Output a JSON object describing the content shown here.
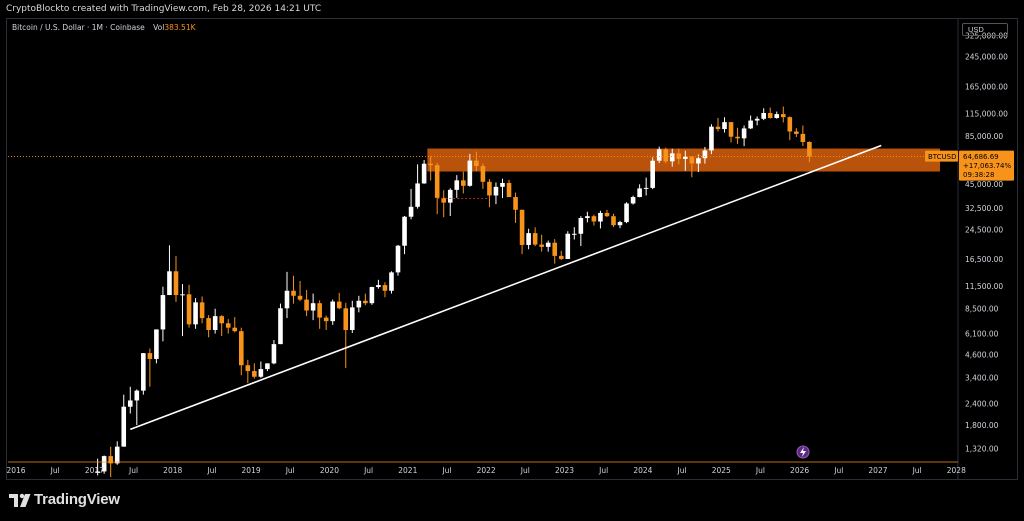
{
  "header": {
    "text": "CryptoBlockto created with TradingView.com, Feb 28, 2026 14:21 UTC"
  },
  "legend": {
    "symbol": "Bitcoin / U.S. Dollar · 1M · Coinbase",
    "vol_label": "Vol",
    "vol_value": "383.51K"
  },
  "currency": "USD",
  "price_tag": {
    "ticker": "BTCUSD",
    "price": "64,686.69",
    "change": "+17,063.74%",
    "countdown": "09:38:28"
  },
  "brand": "TradingView",
  "colors": {
    "up": "#ffffff",
    "down": "#f7931a",
    "zone": "#d9620e",
    "trendline": "#ffffff",
    "background": "#000000"
  },
  "chart_data": {
    "type": "candlestick",
    "scale": "log",
    "y_ticks": [
      "325,000.00",
      "245,000.00",
      "165,000.00",
      "115,000.00",
      "85,000.00",
      "45,000.00",
      "32,500.00",
      "24,500.00",
      "16,500.00",
      "11,500.00",
      "8,500.00",
      "6,100.00",
      "4,600.00",
      "3,400.00",
      "2,400.00",
      "1,800.00",
      "1,320.00"
    ],
    "x_ticks": [
      "2016",
      "Jul",
      "2017",
      "Jul",
      "2018",
      "Jul",
      "2019",
      "Jul",
      "2020",
      "Jul",
      "2021",
      "Jul",
      "2022",
      "Jul",
      "2023",
      "Jul",
      "2024",
      "Jul",
      "2025",
      "Jul",
      "2026",
      "Jul",
      "2027",
      "Jul",
      "2028"
    ],
    "annotations": {
      "resistance_zone": {
        "low": 53000,
        "high": 72000,
        "from": "2021-04",
        "to": "2027-10"
      },
      "trendline": {
        "from": {
          "date": "2017-06",
          "price": 1700
        },
        "to": {
          "date": "2027-01",
          "price": 75000
        }
      }
    },
    "candles": [
      {
        "d": "2017-01",
        "o": 950,
        "h": 1150,
        "l": 920,
        "c": 970
      },
      {
        "d": "2017-02",
        "o": 970,
        "h": 1200,
        "l": 940,
        "c": 1190
      },
      {
        "d": "2017-03",
        "o": 1190,
        "h": 1350,
        "l": 900,
        "c": 1080
      },
      {
        "d": "2017-04",
        "o": 1080,
        "h": 1450,
        "l": 1060,
        "c": 1350
      },
      {
        "d": "2017-05",
        "o": 1350,
        "h": 2700,
        "l": 1350,
        "c": 2300
      },
      {
        "d": "2017-06",
        "o": 2300,
        "h": 3000,
        "l": 2100,
        "c": 2500
      },
      {
        "d": "2017-07",
        "o": 2500,
        "h": 2900,
        "l": 1800,
        "c": 2850
      },
      {
        "d": "2017-08",
        "o": 2850,
        "h": 4700,
        "l": 2700,
        "c": 4700
      },
      {
        "d": "2017-09",
        "o": 4700,
        "h": 5000,
        "l": 3000,
        "c": 4350
      },
      {
        "d": "2017-10",
        "o": 4350,
        "h": 6400,
        "l": 4100,
        "c": 6450
      },
      {
        "d": "2017-11",
        "o": 6450,
        "h": 11400,
        "l": 5500,
        "c": 10200
      },
      {
        "d": "2017-12",
        "o": 10200,
        "h": 19800,
        "l": 10400,
        "c": 14000
      },
      {
        "d": "2018-01",
        "o": 14000,
        "h": 17200,
        "l": 9300,
        "c": 10200
      },
      {
        "d": "2018-02",
        "o": 10200,
        "h": 11800,
        "l": 5900,
        "c": 10300
      },
      {
        "d": "2018-03",
        "o": 10300,
        "h": 11700,
        "l": 6600,
        "c": 6900
      },
      {
        "d": "2018-04",
        "o": 6900,
        "h": 9800,
        "l": 6500,
        "c": 9250
      },
      {
        "d": "2018-05",
        "o": 9250,
        "h": 10000,
        "l": 7000,
        "c": 7500
      },
      {
        "d": "2018-06",
        "o": 7500,
        "h": 7800,
        "l": 5800,
        "c": 6400
      },
      {
        "d": "2018-07",
        "o": 6400,
        "h": 8500,
        "l": 6100,
        "c": 7700
      },
      {
        "d": "2018-08",
        "o": 7700,
        "h": 7800,
        "l": 5900,
        "c": 7000
      },
      {
        "d": "2018-09",
        "o": 7000,
        "h": 7400,
        "l": 6100,
        "c": 6600
      },
      {
        "d": "2018-10",
        "o": 6600,
        "h": 7600,
        "l": 6200,
        "c": 6300
      },
      {
        "d": "2018-11",
        "o": 6300,
        "h": 6600,
        "l": 3500,
        "c": 4000
      },
      {
        "d": "2018-12",
        "o": 4000,
        "h": 4300,
        "l": 3150,
        "c": 3700
      },
      {
        "d": "2019-01",
        "o": 3700,
        "h": 4100,
        "l": 3350,
        "c": 3430
      },
      {
        "d": "2019-02",
        "o": 3430,
        "h": 4200,
        "l": 3380,
        "c": 3800
      },
      {
        "d": "2019-03",
        "o": 3800,
        "h": 4100,
        "l": 3700,
        "c": 4100
      },
      {
        "d": "2019-04",
        "o": 4100,
        "h": 5600,
        "l": 4050,
        "c": 5300
      },
      {
        "d": "2019-05",
        "o": 5300,
        "h": 9100,
        "l": 5300,
        "c": 8550
      },
      {
        "d": "2019-06",
        "o": 8550,
        "h": 13900,
        "l": 7500,
        "c": 10800
      },
      {
        "d": "2019-07",
        "o": 10800,
        "h": 13200,
        "l": 9100,
        "c": 10100
      },
      {
        "d": "2019-08",
        "o": 10100,
        "h": 12300,
        "l": 9400,
        "c": 9600
      },
      {
        "d": "2019-09",
        "o": 9600,
        "h": 10900,
        "l": 7700,
        "c": 8300
      },
      {
        "d": "2019-10",
        "o": 8300,
        "h": 10400,
        "l": 7300,
        "c": 9150
      },
      {
        "d": "2019-11",
        "o": 9150,
        "h": 9500,
        "l": 6500,
        "c": 7550
      },
      {
        "d": "2019-12",
        "o": 7550,
        "h": 7750,
        "l": 6400,
        "c": 7200
      },
      {
        "d": "2020-01",
        "o": 7200,
        "h": 9600,
        "l": 6850,
        "c": 9350
      },
      {
        "d": "2020-02",
        "o": 9350,
        "h": 10500,
        "l": 8450,
        "c": 8550
      },
      {
        "d": "2020-03",
        "o": 8550,
        "h": 9200,
        "l": 3850,
        "c": 6400
      },
      {
        "d": "2020-04",
        "o": 6400,
        "h": 9450,
        "l": 6150,
        "c": 8650
      },
      {
        "d": "2020-05",
        "o": 8650,
        "h": 10100,
        "l": 8100,
        "c": 9450
      },
      {
        "d": "2020-06",
        "o": 9450,
        "h": 10400,
        "l": 8900,
        "c": 9150
      },
      {
        "d": "2020-07",
        "o": 9150,
        "h": 11400,
        "l": 8950,
        "c": 11350
      },
      {
        "d": "2020-08",
        "o": 11350,
        "h": 12500,
        "l": 11100,
        "c": 11650
      },
      {
        "d": "2020-09",
        "o": 11650,
        "h": 12100,
        "l": 9900,
        "c": 10800
      },
      {
        "d": "2020-10",
        "o": 10800,
        "h": 14000,
        "l": 10400,
        "c": 13800
      },
      {
        "d": "2020-11",
        "o": 13800,
        "h": 19900,
        "l": 13200,
        "c": 19700
      },
      {
        "d": "2020-12",
        "o": 19700,
        "h": 29300,
        "l": 17600,
        "c": 29000
      },
      {
        "d": "2021-01",
        "o": 29000,
        "h": 42000,
        "l": 28000,
        "c": 33100
      },
      {
        "d": "2021-02",
        "o": 33100,
        "h": 58300,
        "l": 32300,
        "c": 45200
      },
      {
        "d": "2021-03",
        "o": 45200,
        "h": 61800,
        "l": 45000,
        "c": 58800
      },
      {
        "d": "2021-04",
        "o": 58800,
        "h": 64900,
        "l": 47000,
        "c": 57700
      },
      {
        "d": "2021-05",
        "o": 57700,
        "h": 59500,
        "l": 30000,
        "c": 37300
      },
      {
        "d": "2021-06",
        "o": 37300,
        "h": 41300,
        "l": 28800,
        "c": 35000
      },
      {
        "d": "2021-07",
        "o": 35000,
        "h": 42400,
        "l": 29300,
        "c": 41500
      },
      {
        "d": "2021-08",
        "o": 41500,
        "h": 50500,
        "l": 37300,
        "c": 47100
      },
      {
        "d": "2021-09",
        "o": 47100,
        "h": 52900,
        "l": 39600,
        "c": 43800
      },
      {
        "d": "2021-10",
        "o": 43800,
        "h": 67000,
        "l": 43300,
        "c": 61300
      },
      {
        "d": "2021-11",
        "o": 61300,
        "h": 69000,
        "l": 53300,
        "c": 57000
      },
      {
        "d": "2021-12",
        "o": 57000,
        "h": 59100,
        "l": 42000,
        "c": 46200
      },
      {
        "d": "2022-01",
        "o": 46200,
        "h": 47900,
        "l": 32900,
        "c": 38500
      },
      {
        "d": "2022-02",
        "o": 38500,
        "h": 45800,
        "l": 34300,
        "c": 43200
      },
      {
        "d": "2022-03",
        "o": 43200,
        "h": 48200,
        "l": 37200,
        "c": 45500
      },
      {
        "d": "2022-04",
        "o": 45500,
        "h": 47400,
        "l": 37700,
        "c": 37700
      },
      {
        "d": "2022-05",
        "o": 37700,
        "h": 40000,
        "l": 26700,
        "c": 31800
      },
      {
        "d": "2022-06",
        "o": 31800,
        "h": 31900,
        "l": 17600,
        "c": 19900
      },
      {
        "d": "2022-07",
        "o": 19900,
        "h": 24700,
        "l": 18800,
        "c": 23300
      },
      {
        "d": "2022-08",
        "o": 23300,
        "h": 25200,
        "l": 19600,
        "c": 20000
      },
      {
        "d": "2022-09",
        "o": 20000,
        "h": 22800,
        "l": 18200,
        "c": 19400
      },
      {
        "d": "2022-10",
        "o": 19400,
        "h": 21100,
        "l": 18200,
        "c": 20500
      },
      {
        "d": "2022-11",
        "o": 20500,
        "h": 21500,
        "l": 15500,
        "c": 17200
      },
      {
        "d": "2022-12",
        "o": 17200,
        "h": 18400,
        "l": 16300,
        "c": 16500
      },
      {
        "d": "2023-01",
        "o": 16500,
        "h": 23900,
        "l": 16500,
        "c": 23100
      },
      {
        "d": "2023-02",
        "o": 23100,
        "h": 25200,
        "l": 21400,
        "c": 23100
      },
      {
        "d": "2023-03",
        "o": 23100,
        "h": 29200,
        "l": 19600,
        "c": 28500
      },
      {
        "d": "2023-04",
        "o": 28500,
        "h": 31000,
        "l": 26900,
        "c": 29200
      },
      {
        "d": "2023-05",
        "o": 29200,
        "h": 29800,
        "l": 25800,
        "c": 27200
      },
      {
        "d": "2023-06",
        "o": 27200,
        "h": 31400,
        "l": 24800,
        "c": 30500
      },
      {
        "d": "2023-07",
        "o": 30500,
        "h": 31800,
        "l": 28900,
        "c": 29200
      },
      {
        "d": "2023-08",
        "o": 29200,
        "h": 30200,
        "l": 25300,
        "c": 25900
      },
      {
        "d": "2023-09",
        "o": 25900,
        "h": 27500,
        "l": 24900,
        "c": 27000
      },
      {
        "d": "2023-10",
        "o": 27000,
        "h": 35200,
        "l": 26600,
        "c": 34600
      },
      {
        "d": "2023-11",
        "o": 34600,
        "h": 38400,
        "l": 34100,
        "c": 37700
      },
      {
        "d": "2023-12",
        "o": 37700,
        "h": 44700,
        "l": 37600,
        "c": 42300
      },
      {
        "d": "2024-01",
        "o": 42300,
        "h": 48900,
        "l": 38500,
        "c": 42600
      },
      {
        "d": "2024-02",
        "o": 42600,
        "h": 64000,
        "l": 41900,
        "c": 61200
      },
      {
        "d": "2024-03",
        "o": 61200,
        "h": 73800,
        "l": 59300,
        "c": 71300
      },
      {
        "d": "2024-04",
        "o": 71300,
        "h": 72800,
        "l": 59200,
        "c": 60700
      },
      {
        "d": "2024-05",
        "o": 60700,
        "h": 71900,
        "l": 56600,
        "c": 67500
      },
      {
        "d": "2024-06",
        "o": 67500,
        "h": 72000,
        "l": 58400,
        "c": 62700
      },
      {
        "d": "2024-07",
        "o": 62700,
        "h": 70000,
        "l": 53500,
        "c": 64600
      },
      {
        "d": "2024-08",
        "o": 64600,
        "h": 65100,
        "l": 49100,
        "c": 59000
      },
      {
        "d": "2024-09",
        "o": 59000,
        "h": 66500,
        "l": 52600,
        "c": 63300
      },
      {
        "d": "2024-10",
        "o": 63300,
        "h": 73600,
        "l": 58900,
        "c": 70200
      },
      {
        "d": "2024-11",
        "o": 70200,
        "h": 99600,
        "l": 66800,
        "c": 96400
      },
      {
        "d": "2024-12",
        "o": 96400,
        "h": 108300,
        "l": 90500,
        "c": 93400
      },
      {
        "d": "2025-01",
        "o": 93400,
        "h": 109300,
        "l": 89200,
        "c": 102400
      },
      {
        "d": "2025-02",
        "o": 102400,
        "h": 102700,
        "l": 78100,
        "c": 84300
      },
      {
        "d": "2025-03",
        "o": 84300,
        "h": 95000,
        "l": 76600,
        "c": 82500
      },
      {
        "d": "2025-04",
        "o": 82500,
        "h": 97900,
        "l": 74400,
        "c": 94200
      },
      {
        "d": "2025-05",
        "o": 94200,
        "h": 111900,
        "l": 93400,
        "c": 104600
      },
      {
        "d": "2025-06",
        "o": 104600,
        "h": 110500,
        "l": 98200,
        "c": 107100
      },
      {
        "d": "2025-07",
        "o": 107100,
        "h": 123200,
        "l": 105200,
        "c": 115700
      },
      {
        "d": "2025-08",
        "o": 115700,
        "h": 124400,
        "l": 107300,
        "c": 108200
      },
      {
        "d": "2025-09",
        "o": 108200,
        "h": 117900,
        "l": 107200,
        "c": 114000
      },
      {
        "d": "2025-10",
        "o": 114000,
        "h": 126200,
        "l": 102000,
        "c": 109500
      },
      {
        "d": "2025-11",
        "o": 109500,
        "h": 110600,
        "l": 80500,
        "c": 90400
      },
      {
        "d": "2025-12",
        "o": 90400,
        "h": 94500,
        "l": 84000,
        "c": 87500
      },
      {
        "d": "2026-01",
        "o": 87500,
        "h": 97900,
        "l": 74500,
        "c": 78600
      },
      {
        "d": "2026-02",
        "o": 78600,
        "h": 79300,
        "l": 60000,
        "c": 64687
      }
    ]
  }
}
